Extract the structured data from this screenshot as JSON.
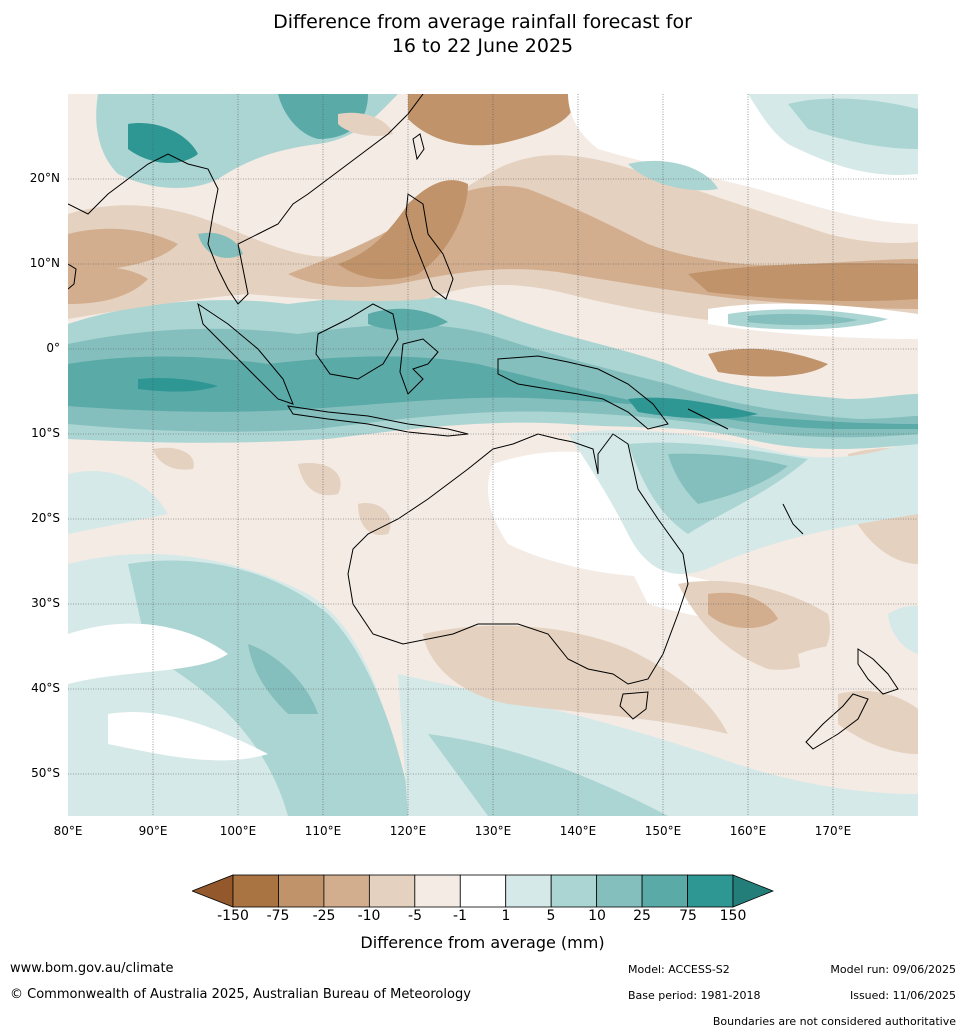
{
  "title": {
    "line1": "Difference from average rainfall forecast for",
    "line2": "16 to 22 June 2025"
  },
  "map": {
    "lat_ticks": [
      "20°N",
      "10°N",
      "0°",
      "10°S",
      "20°S",
      "30°S",
      "40°S",
      "50°S"
    ],
    "lon_ticks": [
      "80°E",
      "90°E",
      "100°E",
      "110°E",
      "120°E",
      "130°E",
      "140°E",
      "150°E",
      "160°E",
      "170°E"
    ]
  },
  "legend": {
    "ticks": [
      "-150",
      "-75",
      "-25",
      "-10",
      "-5",
      "-1",
      "1",
      "5",
      "10",
      "25",
      "75",
      "150"
    ],
    "colors": [
      "#a97342",
      "#c0936a",
      "#d2ae8e",
      "#e4d1bf",
      "#f4ebe4",
      "#ffffff",
      "#d5e9e8",
      "#abd5d3",
      "#84bfbd",
      "#5aaaa8",
      "#2e9793"
    ],
    "extend_low_color": "#93582b",
    "extend_high_color": "#237d79",
    "label": "Difference from average (mm)"
  },
  "footer": {
    "website": "www.bom.gov.au/climate",
    "copyright": "© Commonwealth of Australia 2025, Australian Bureau of Meteorology",
    "model": "Model: ACCESS-S2",
    "base_period": "Base period: 1981-2018",
    "model_run": "Model run: 09/06/2025",
    "issued": "Issued: 11/06/2025",
    "disclaimer": "Boundaries are not considered authoritative"
  }
}
